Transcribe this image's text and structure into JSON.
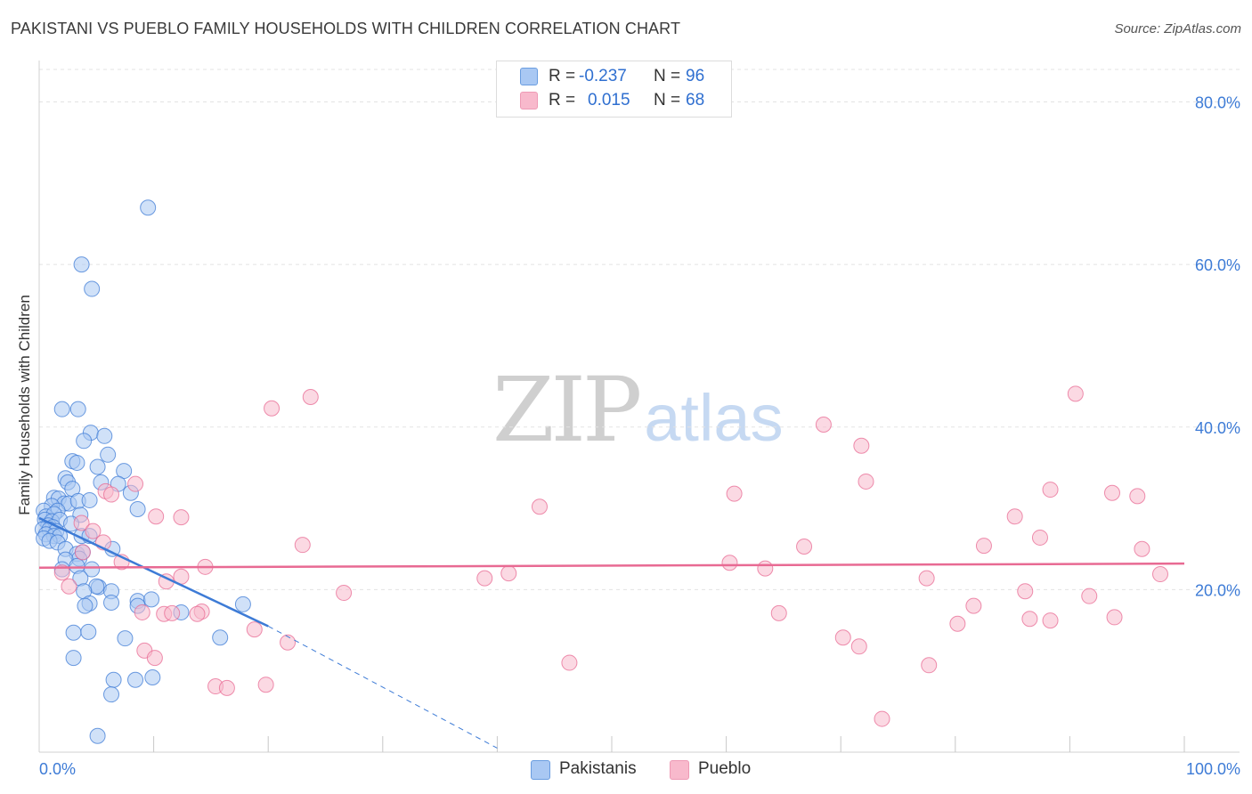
{
  "title": "PAKISTANI VS PUEBLO FAMILY HOUSEHOLDS WITH CHILDREN CORRELATION CHART",
  "source": "Source: ZipAtlas.com",
  "watermark": {
    "zip": "ZIP",
    "atlas": "atlas"
  },
  "stats": [
    {
      "r_label": "R =",
      "r_value": "-0.237",
      "n_label": "N =",
      "n_value": "96",
      "color": "#a9c8f3"
    },
    {
      "r_label": "R =",
      "r_value": "0.015",
      "n_label": "N =",
      "n_value": "68",
      "color": "#f8b9cc"
    }
  ],
  "legend": [
    {
      "label": "Pakistanis",
      "color": "#a9c8f3"
    },
    {
      "label": "Pueblo",
      "color": "#f8b9cc"
    }
  ],
  "chart_data": {
    "type": "scatter",
    "xlabel": "",
    "ylabel": "Family Households with Children",
    "xlim": [
      0,
      100
    ],
    "ylim": [
      0,
      84
    ],
    "x_tick_labels": [
      "0.0%",
      "100.0%"
    ],
    "y_ticks": [
      20,
      40,
      60,
      80
    ],
    "y_tick_labels": [
      "20.0%",
      "40.0%",
      "60.0%",
      "80.0%"
    ],
    "grid": true,
    "series": [
      {
        "name": "Pakistanis",
        "color": "#3d7bd6",
        "fill": "#a9c8f3",
        "trend": {
          "x": [
            0,
            20
          ],
          "y": [
            28.8,
            15.5
          ],
          "dash_x": [
            20,
            40
          ],
          "dash_y": [
            15.5,
            0.5
          ]
        },
        "points": [
          [
            9.5,
            67
          ],
          [
            3.7,
            60
          ],
          [
            4.6,
            57
          ],
          [
            2.0,
            42.2
          ],
          [
            3.4,
            42.2
          ],
          [
            4.5,
            39.3
          ],
          [
            5.7,
            38.9
          ],
          [
            3.9,
            38.3
          ],
          [
            2.9,
            35.8
          ],
          [
            6.0,
            36.6
          ],
          [
            3.3,
            35.6
          ],
          [
            5.1,
            35.1
          ],
          [
            7.4,
            34.6
          ],
          [
            2.3,
            33.7
          ],
          [
            2.5,
            33.2
          ],
          [
            5.4,
            33.2
          ],
          [
            6.9,
            33.0
          ],
          [
            8.0,
            31.9
          ],
          [
            2.9,
            32.4
          ],
          [
            1.3,
            31.3
          ],
          [
            1.7,
            31.2
          ],
          [
            2.2,
            30.6
          ],
          [
            2.6,
            30.6
          ],
          [
            3.4,
            30.9
          ],
          [
            4.4,
            31.0
          ],
          [
            1.1,
            30.3
          ],
          [
            1.6,
            29.7
          ],
          [
            8.6,
            29.9
          ],
          [
            0.4,
            29.7
          ],
          [
            0.6,
            29.0
          ],
          [
            1.3,
            29.3
          ],
          [
            3.6,
            29.2
          ],
          [
            0.5,
            28.6
          ],
          [
            1.1,
            28.4
          ],
          [
            1.8,
            28.6
          ],
          [
            0.8,
            27.9
          ],
          [
            1.2,
            27.7
          ],
          [
            2.8,
            28.1
          ],
          [
            0.3,
            27.4
          ],
          [
            0.9,
            27.4
          ],
          [
            1.5,
            27.2
          ],
          [
            0.6,
            26.8
          ],
          [
            1.3,
            26.6
          ],
          [
            1.8,
            26.6
          ],
          [
            3.7,
            26.6
          ],
          [
            0.4,
            26.3
          ],
          [
            0.9,
            26.0
          ],
          [
            1.6,
            25.8
          ],
          [
            4.4,
            26.6
          ],
          [
            6.4,
            25.0
          ],
          [
            2.3,
            25.0
          ],
          [
            3.3,
            24.4
          ],
          [
            3.8,
            24.6
          ],
          [
            3.5,
            23.8
          ],
          [
            2.3,
            23.7
          ],
          [
            3.3,
            22.9
          ],
          [
            4.6,
            22.5
          ],
          [
            2.0,
            22.5
          ],
          [
            3.6,
            21.4
          ],
          [
            5.2,
            20.3
          ],
          [
            5.0,
            20.4
          ],
          [
            6.3,
            19.8
          ],
          [
            3.9,
            19.8
          ],
          [
            8.6,
            18.6
          ],
          [
            9.8,
            18.8
          ],
          [
            17.8,
            18.2
          ],
          [
            6.3,
            18.4
          ],
          [
            4.4,
            18.3
          ],
          [
            4.0,
            18.0
          ],
          [
            8.6,
            18.0
          ],
          [
            12.4,
            17.2
          ],
          [
            3.0,
            14.7
          ],
          [
            4.3,
            14.8
          ],
          [
            7.5,
            14.0
          ],
          [
            15.8,
            14.1
          ],
          [
            3.0,
            11.6
          ],
          [
            6.5,
            8.9
          ],
          [
            6.3,
            7.1
          ],
          [
            9.9,
            9.2
          ],
          [
            8.4,
            8.9
          ],
          [
            5.1,
            2.0
          ]
        ]
      },
      {
        "name": "Pueblo",
        "color": "#e86a93",
        "fill": "#f8b9cc",
        "trend": {
          "x": [
            0,
            100
          ],
          "y": [
            22.7,
            23.2
          ]
        },
        "points": [
          [
            23.7,
            43.7
          ],
          [
            20.3,
            42.3
          ],
          [
            90.5,
            44.1
          ],
          [
            68.5,
            40.3
          ],
          [
            71.8,
            37.7
          ],
          [
            72.2,
            33.3
          ],
          [
            8.4,
            33.0
          ],
          [
            5.8,
            32.1
          ],
          [
            6.3,
            31.7
          ],
          [
            60.7,
            31.8
          ],
          [
            88.3,
            32.3
          ],
          [
            93.7,
            31.9
          ],
          [
            95.9,
            31.5
          ],
          [
            43.7,
            30.2
          ],
          [
            10.2,
            29.0
          ],
          [
            12.4,
            28.9
          ],
          [
            85.2,
            29.0
          ],
          [
            3.7,
            28.2
          ],
          [
            4.7,
            27.2
          ],
          [
            87.4,
            26.4
          ],
          [
            5.6,
            25.8
          ],
          [
            23.0,
            25.5
          ],
          [
            66.8,
            25.3
          ],
          [
            82.5,
            25.4
          ],
          [
            96.3,
            25.0
          ],
          [
            3.8,
            24.6
          ],
          [
            7.2,
            23.4
          ],
          [
            60.3,
            23.3
          ],
          [
            14.5,
            22.8
          ],
          [
            63.4,
            22.6
          ],
          [
            2.0,
            22.1
          ],
          [
            41.0,
            22.0
          ],
          [
            97.9,
            21.9
          ],
          [
            12.4,
            21.6
          ],
          [
            38.9,
            21.4
          ],
          [
            77.5,
            21.4
          ],
          [
            11.1,
            21.0
          ],
          [
            2.6,
            20.4
          ],
          [
            26.6,
            19.6
          ],
          [
            86.1,
            19.8
          ],
          [
            91.7,
            19.2
          ],
          [
            81.6,
            18.0
          ],
          [
            9.0,
            17.2
          ],
          [
            10.9,
            17.0
          ],
          [
            11.6,
            17.1
          ],
          [
            14.2,
            17.3
          ],
          [
            13.8,
            17.0
          ],
          [
            93.9,
            16.6
          ],
          [
            88.3,
            16.2
          ],
          [
            86.5,
            16.4
          ],
          [
            64.6,
            17.1
          ],
          [
            80.2,
            15.8
          ],
          [
            18.8,
            15.1
          ],
          [
            21.7,
            13.5
          ],
          [
            70.2,
            14.1
          ],
          [
            71.6,
            13.0
          ],
          [
            9.2,
            12.5
          ],
          [
            10.1,
            11.6
          ],
          [
            46.3,
            11.0
          ],
          [
            77.7,
            10.7
          ],
          [
            15.4,
            8.1
          ],
          [
            16.4,
            7.9
          ],
          [
            19.8,
            8.3
          ],
          [
            73.6,
            4.1
          ]
        ]
      }
    ]
  }
}
